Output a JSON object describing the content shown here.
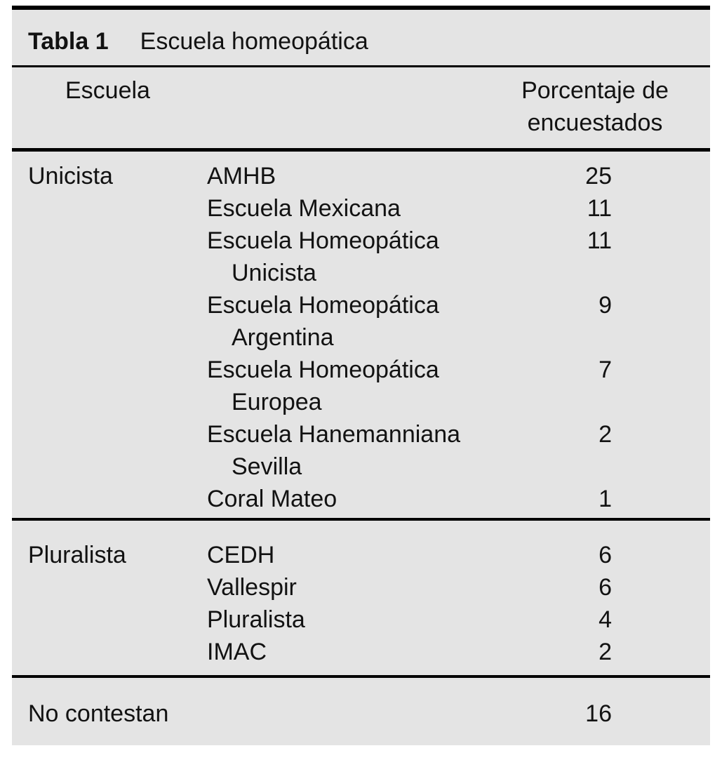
{
  "colors": {
    "panel_background": "#e4e4e4",
    "rule": "#000000",
    "text": "#121212"
  },
  "table": {
    "label": "Tabla 1",
    "title": "Escuela homeopática",
    "header": {
      "school": "Escuela",
      "percent_line1": "Porcentaje de",
      "percent_line2": "encuestados"
    },
    "sections": [
      {
        "group": "Unicista",
        "entries": [
          {
            "name": "AMHB",
            "value": "25"
          },
          {
            "name": "Escuela Mexicana",
            "value": "11"
          },
          {
            "name": "Escuela Homeopática",
            "cont": "Unicista",
            "value": "11"
          },
          {
            "name": "Escuela Homeopática",
            "cont": "Argentina",
            "value": "9"
          },
          {
            "name": "Escuela Homeopática",
            "cont": "Europea",
            "value": "7"
          },
          {
            "name": "Escuela Hanemanniana",
            "cont": "Sevilla",
            "value": "2"
          },
          {
            "name": "Coral Mateo",
            "value": "1"
          }
        ]
      },
      {
        "group": "Pluralista",
        "entries": [
          {
            "name": "CEDH",
            "value": "6"
          },
          {
            "name": "Vallespir",
            "value": "6"
          },
          {
            "name": "Pluralista",
            "value": "4"
          },
          {
            "name": "IMAC",
            "value": "2"
          }
        ]
      },
      {
        "group": "No contestan",
        "entries": [],
        "value": "16"
      }
    ]
  }
}
